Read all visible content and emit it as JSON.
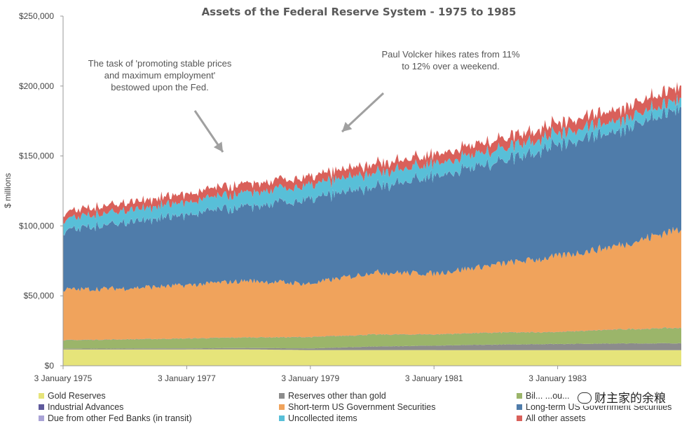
{
  "chart_data": {
    "type": "area",
    "title": "Assets of the Federal Reserve System - 1975 to 1985",
    "ylabel": "$ millions",
    "ylim": [
      0,
      250000
    ],
    "yticks": [
      "$0",
      "$50,000",
      "$100,000",
      "$150,000",
      "$200,000",
      "$250,000"
    ],
    "xticks": [
      "3 January 1975",
      "3 January 1977",
      "3 January 1979",
      "3 January 1981",
      "3 January 1983"
    ],
    "xrange_years": [
      1975,
      1985
    ],
    "stacked": true,
    "series": [
      {
        "name": "Gold Reserves",
        "color": "#e6e47a",
        "years": [
          1975,
          1976,
          1977,
          1978,
          1979,
          1980,
          1981,
          1982,
          1983,
          1984,
          1985
        ],
        "values": [
          11600,
          11600,
          11700,
          11700,
          11200,
          11200,
          11200,
          11100,
          11100,
          11100,
          11100
        ]
      },
      {
        "name": "Reserves other than gold",
        "color": "#8c8c8c",
        "years": [
          1975,
          1976,
          1977,
          1978,
          1979,
          1980,
          1981,
          1982,
          1983,
          1984,
          1985
        ],
        "values": [
          600,
          700,
          700,
          1000,
          1200,
          2500,
          3200,
          4000,
          4500,
          4800,
          5000
        ]
      },
      {
        "name": "Bills bought in open market",
        "color": "#9bb56a",
        "years": [
          1975,
          1976,
          1977,
          1978,
          1979,
          1980,
          1981,
          1982,
          1983,
          1984,
          1985
        ],
        "values": [
          6000,
          6500,
          7000,
          7500,
          8000,
          8500,
          8000,
          8500,
          8500,
          10000,
          11000
        ]
      },
      {
        "name": "Industrial Advances",
        "color": "#5f5a9c",
        "years": [
          1975,
          1976,
          1977,
          1978,
          1979,
          1980,
          1981,
          1982,
          1983,
          1984,
          1985
        ],
        "values": [
          100,
          100,
          100,
          100,
          100,
          100,
          100,
          100,
          100,
          100,
          100
        ]
      },
      {
        "name": "Short-term US Government Securities",
        "color": "#f0a35c",
        "years": [
          1975,
          1976,
          1977,
          1978,
          1979,
          1980,
          1981,
          1982,
          1983,
          1984,
          1985
        ],
        "values": [
          36000,
          36500,
          38000,
          40500,
          38000,
          44500,
          43500,
          48500,
          54000,
          60000,
          71000
        ]
      },
      {
        "name": "Long-term US Government Securities",
        "color": "#4f7caa",
        "years": [
          1975,
          1976,
          1977,
          1978,
          1979,
          1980,
          1981,
          1982,
          1983,
          1984,
          1985
        ],
        "values": [
          42000,
          47500,
          50000,
          53000,
          60000,
          61000,
          70000,
          73000,
          80000,
          82000,
          86000
        ]
      },
      {
        "name": "Due from other Fed Banks (in transit)",
        "color": "#a9a3d6",
        "years": [
          1975,
          1976,
          1977,
          1978,
          1979,
          1980,
          1981,
          1982,
          1983,
          1984,
          1985
        ],
        "values": [
          100,
          100,
          100,
          100,
          100,
          100,
          100,
          100,
          100,
          100,
          100
        ]
      },
      {
        "name": "Uncollected items",
        "color": "#58bfd8",
        "years": [
          1975,
          1976,
          1977,
          1978,
          1979,
          1980,
          1981,
          1982,
          1983,
          1984,
          1985
        ],
        "values": [
          8000,
          8500,
          9000,
          10000,
          10000,
          10000,
          9000,
          9000,
          8000,
          7500,
          6500
        ]
      },
      {
        "name": "All other assets",
        "color": "#d9605a",
        "years": [
          1975,
          1976,
          1977,
          1978,
          1979,
          1980,
          1981,
          1982,
          1983,
          1984,
          1985
        ],
        "values": [
          5000,
          5500,
          6000,
          6500,
          6000,
          6500,
          6500,
          7000,
          7500,
          8000,
          9000
        ]
      }
    ],
    "annotations": [
      {
        "lines": [
          "The task of 'promoting stable prices",
          "and maximum employment'",
          "bestowed upon the Fed."
        ],
        "points_to_year": 1977.5
      },
      {
        "lines": [
          "Paul Volcker hikes rates from 11%",
          "to 12% over a weekend."
        ],
        "points_to_year": 1979.3
      }
    ],
    "legend_order": [
      "Gold Reserves",
      "Reserves other than gold",
      "Bills bought in open market",
      "Industrial Advances",
      "Short-term US Government Securities",
      "Long-term US Government Securities",
      "Due from other Fed Banks (in transit)",
      "Uncollected items",
      "All other assets"
    ]
  },
  "watermark": "财主家的余粮",
  "bills_label_visible": "Bil... ...ou..."
}
